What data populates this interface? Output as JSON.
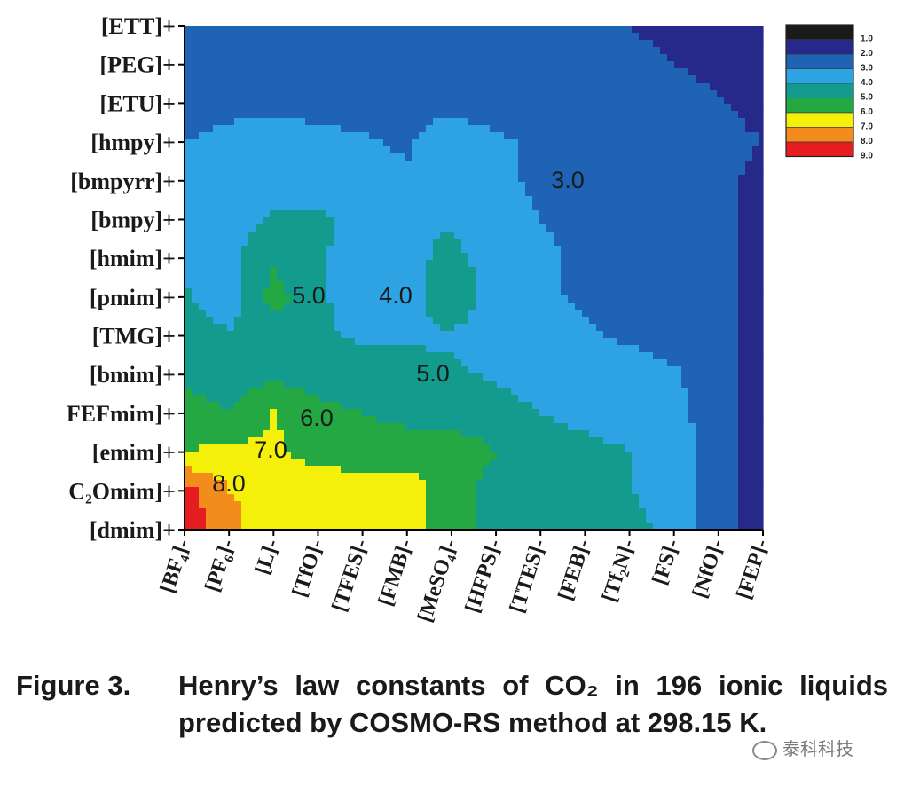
{
  "caption": {
    "number": "Figure 3.",
    "text": "Henry’s law constants of CO₂ in 196 ionic liquids predicted by COSMO-RS method at 298.15 K."
  },
  "watermark": "泰科科技",
  "chart_data": {
    "type": "heatmap",
    "subtype": "filled-contour",
    "y_categories": [
      "[dmim]+",
      "C₂Omim]+",
      "[emim]+",
      "FEFmim]+",
      "[bmim]+",
      "[TMG]+",
      "[pmim]+",
      "[hmim]+",
      "[bmpy]+",
      "[bmpyrr]+",
      "[hmpy]+",
      "[ETU]+",
      "[PEG]+",
      "[ETT]+"
    ],
    "x_categories": [
      "[BF₄]-",
      "[PF₆]-",
      "[L]-",
      "[TfO]-",
      "[TFES]-",
      "[FMB]-",
      "[MeSO₄]-",
      "[HFPS]-",
      "[TTES]-",
      "[FEB]-",
      "[Tf₂N]-",
      "[FS]-",
      "[NfO]-",
      "[FEP]-"
    ],
    "legend_levels": [
      "1.0",
      "2.0",
      "3.0",
      "4.0",
      "5.0",
      "6.0",
      "7.0",
      "8.0",
      "9.0"
    ],
    "legend_colors": [
      "#1a1a1a",
      "#26298a",
      "#1e63b4",
      "#2ea3e3",
      "#139b8d",
      "#23a844",
      "#f4f00a",
      "#f28c1c",
      "#e51d20"
    ],
    "legend_placement": "top-right",
    "contour_labels": [
      "3.0",
      "5.0",
      "4.0",
      "5.0",
      "6.0",
      "7.0",
      "8.0"
    ],
    "values": [
      [
        9.0,
        8.0,
        6.5,
        7.0,
        7.0,
        7.0,
        6.0,
        5.0,
        5.0,
        5.0,
        5.0,
        4.0,
        3.0,
        2.0
      ],
      [
        9.0,
        7.5,
        7.2,
        7.0,
        7.0,
        7.0,
        6.0,
        5.0,
        5.0,
        5.0,
        4.5,
        4.0,
        3.0,
        2.0
      ],
      [
        6.5,
        6.8,
        6.6,
        6.2,
        6.0,
        6.0,
        6.2,
        5.5,
        5.0,
        4.8,
        4.5,
        4.0,
        3.0,
        2.0
      ],
      [
        6.0,
        5.5,
        6.6,
        5.8,
        5.5,
        5.2,
        5.0,
        4.8,
        4.5,
        4.2,
        4.0,
        3.8,
        3.0,
        2.0
      ],
      [
        5.2,
        5.0,
        5.3,
        5.0,
        4.8,
        4.8,
        4.6,
        4.4,
        4.2,
        4.0,
        3.8,
        3.6,
        3.0,
        2.0
      ],
      [
        4.8,
        4.6,
        4.6,
        4.6,
        4.4,
        4.4,
        4.4,
        4.0,
        3.8,
        3.6,
        3.4,
        3.2,
        3.0,
        2.0
      ],
      [
        4.6,
        4.0,
        6.0,
        4.6,
        4.2,
        4.0,
        5.2,
        4.0,
        3.6,
        3.4,
        3.3,
        3.2,
        3.0,
        2.0
      ],
      [
        4.4,
        4.2,
        5.3,
        4.6,
        4.2,
        4.2,
        4.8,
        4.0,
        3.6,
        3.4,
        3.3,
        3.2,
        3.0,
        2.0
      ],
      [
        4.0,
        4.2,
        4.6,
        4.6,
        4.3,
        4.3,
        4.4,
        3.8,
        3.5,
        3.4,
        3.3,
        3.2,
        3.0,
        2.0
      ],
      [
        3.8,
        4.0,
        4.2,
        4.2,
        3.8,
        3.6,
        4.0,
        3.6,
        3.4,
        3.2,
        3.2,
        3.2,
        3.0,
        2.0
      ],
      [
        3.5,
        3.8,
        4.2,
        3.8,
        3.6,
        3.4,
        4.2,
        3.6,
        3.4,
        3.2,
        3.2,
        3.2,
        3.0,
        2.5
      ],
      [
        2.9,
        3.2,
        3.2,
        3.1,
        3.1,
        3.2,
        3.1,
        3.1,
        3.0,
        2.9,
        2.9,
        2.8,
        2.6,
        2.0
      ],
      [
        2.6,
        2.7,
        2.7,
        2.7,
        2.7,
        2.8,
        2.7,
        2.7,
        2.6,
        2.6,
        2.6,
        2.5,
        2.3,
        1.8
      ],
      [
        2.5,
        2.5,
        2.5,
        2.5,
        2.5,
        2.6,
        2.5,
        2.5,
        2.5,
        2.5,
        2.5,
        2.4,
        2.1,
        1.6
      ]
    ]
  }
}
